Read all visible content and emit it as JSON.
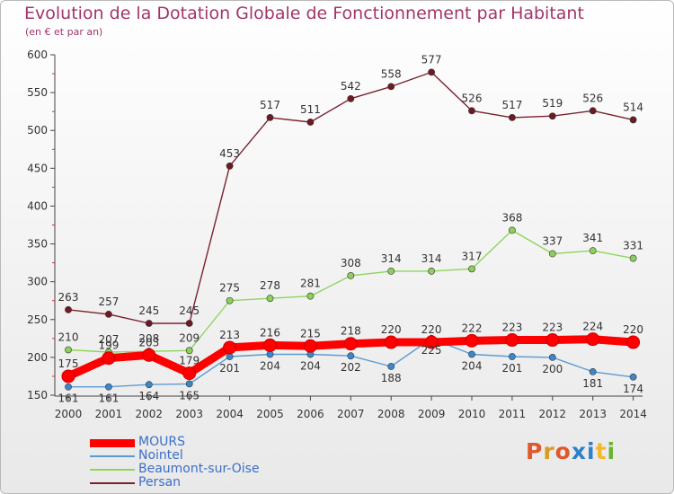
{
  "title": "Evolution de la Dotation Globale de Fonctionnement par Habitant",
  "subtitle": "(en € et par an)",
  "logo": {
    "text": "Proxiti",
    "colors": [
      "#e0582a",
      "#d99b1e",
      "#e0582a",
      "#2f80c9",
      "#2f80c9",
      "#f3b928",
      "#66b32e"
    ]
  },
  "chart_data": {
    "type": "line",
    "x": [
      "2000",
      "2001",
      "2002",
      "2003",
      "2004",
      "2005",
      "2006",
      "2007",
      "2008",
      "2009",
      "2010",
      "2011",
      "2012",
      "2013",
      "2014"
    ],
    "ylim": [
      150,
      600
    ],
    "yticks": [
      150,
      200,
      250,
      300,
      350,
      400,
      450,
      500,
      550,
      600
    ],
    "grid": false,
    "legend_position": "bottom-left",
    "series": [
      {
        "name": "Persan",
        "color": "#7a2230",
        "marker": "#6e1a22",
        "values": [
          263,
          257,
          245,
          245,
          453,
          517,
          511,
          542,
          558,
          577,
          526,
          517,
          519,
          526,
          514
        ]
      },
      {
        "name": "Beaumont-sur-Oise",
        "color": "#8fd45c",
        "marker": "#8cd05a",
        "values": [
          210,
          207,
          208,
          209,
          275,
          278,
          281,
          308,
          314,
          314,
          317,
          368,
          337,
          341,
          331
        ]
      },
      {
        "name": "Nointel",
        "color": "#5b9bd5",
        "marker": "#3f86c9",
        "values": [
          161,
          161,
          164,
          165,
          201,
          204,
          204,
          202,
          188,
          225,
          204,
          201,
          200,
          181,
          174
        ]
      },
      {
        "name": "MOURS",
        "color": "#ff0000",
        "marker": "#ff0000",
        "values": [
          175,
          199,
          203,
          179,
          213,
          216,
          215,
          218,
          220,
          220,
          222,
          223,
          223,
          224,
          220
        ]
      }
    ]
  }
}
